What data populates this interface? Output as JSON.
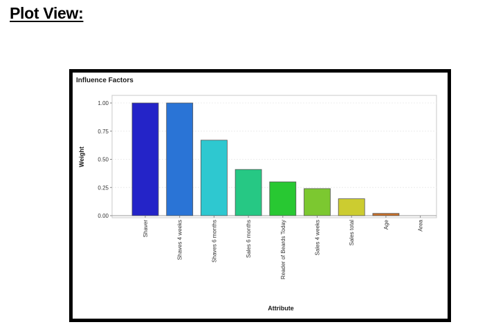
{
  "page": {
    "heading": "Plot View:"
  },
  "chart_data": {
    "type": "bar",
    "title": "Influence Factors",
    "xlabel": "Attribute",
    "ylabel": "Weight",
    "categories": [
      "Shaver",
      "Shaves 4 weeks",
      "Shaves 6 months",
      "Sales 6 months",
      "Reader of Beards Today",
      "Sales 4 weeks",
      "Sales total",
      "Age",
      "Area"
    ],
    "values": [
      1.0,
      1.0,
      0.67,
      0.41,
      0.3,
      0.24,
      0.15,
      0.02,
      0.0
    ],
    "colors": [
      "#2424c8",
      "#2a74d6",
      "#2ec8d0",
      "#26c884",
      "#28c832",
      "#7cc830",
      "#cccc30",
      "#c87028",
      "#c82424"
    ],
    "ylim": [
      0,
      1.0
    ],
    "yticks": [
      0.0,
      0.25,
      0.5,
      0.75,
      1.0
    ],
    "ytick_labels": [
      "0.00",
      "0.25",
      "0.50",
      "0.75",
      "1.00"
    ],
    "grid": true,
    "legend": "none"
  }
}
